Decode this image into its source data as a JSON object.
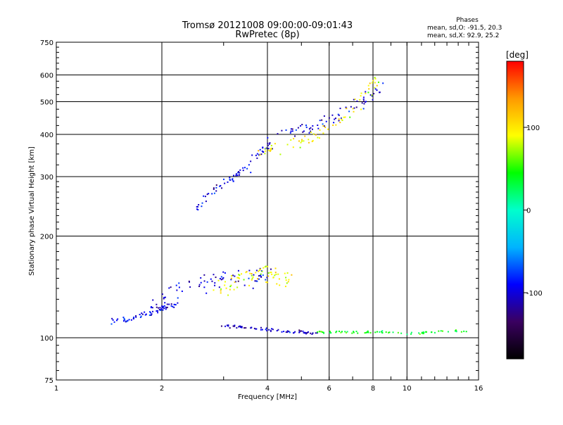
{
  "chart_data": {
    "type": "scatter",
    "title": "Tromsø 20121008 09:00:00-09:01:43",
    "subtitle": "RwPretec (8p)",
    "xlabel": "Frequency [MHz]",
    "ylabel": "Stationary phase Virtual Height [km]",
    "x_scale": "log",
    "y_scale": "log",
    "xlim": [
      1,
      16
    ],
    "ylim": [
      75,
      750
    ],
    "x_ticks": [
      1,
      2,
      4,
      6,
      8,
      10,
      16
    ],
    "x_tick_labels": [
      "1",
      "2",
      "4",
      "6",
      "8",
      "10",
      "16"
    ],
    "y_ticks": [
      75,
      100,
      200,
      300,
      400,
      500,
      600,
      750
    ],
    "y_tick_labels": [
      "75",
      "100",
      "200",
      "300",
      "400",
      "500",
      "600",
      "750"
    ],
    "grid": true,
    "stats": {
      "heading": "Phases",
      "line_o": "mean, sd,O: -91.5, 20.3",
      "line_x": "mean, sd,X:  92.9, 25.2"
    },
    "colorbar": {
      "unit_label": "[deg]",
      "range": [
        -180,
        180
      ],
      "tick_values": [
        100,
        0,
        -100
      ],
      "tick_labels": [
        "100",
        "0",
        "-100"
      ],
      "colors": [
        "#000000",
        "#3a0060",
        "#0000ff",
        "#00b4ff",
        "#00ffcc",
        "#00ff00",
        "#ffff00",
        "#ff9900",
        "#ff0000"
      ]
    },
    "traces": [
      {
        "name": "",
        "phase": -95,
        "f": [
          1.4,
          1.6,
          1.8,
          2.0,
          2.2
        ],
        "h": [
          112,
          113,
          117,
          122,
          125
        ],
        "spread": [
          0.03,
          0.03
        ]
      },
      {
        "name": "",
        "phase": -100,
        "f": [
          1.9,
          2.2,
          2.6,
          3.0,
          3.6,
          4.0
        ],
        "h": [
          128,
          138,
          145,
          150,
          152,
          152
        ],
        "spread": [
          0.06,
          0.09
        ]
      },
      {
        "name": "",
        "phase": 90,
        "f": [
          2.9,
          3.4,
          4.0,
          4.6
        ],
        "h": [
          140,
          150,
          155,
          152
        ],
        "spread": [
          0.05,
          0.1
        ]
      },
      {
        "name": "",
        "phase": -100,
        "f": [
          2.5,
          2.7,
          3.0,
          3.3,
          3.7,
          4.1
        ],
        "h": [
          240,
          265,
          285,
          305,
          340,
          380
        ],
        "spread": [
          0.04,
          0.05
        ]
      },
      {
        "name": "",
        "phase": -100,
        "f": [
          3.9,
          4.6,
          5.3,
          6.0,
          6.8,
          7.6,
          8.4
        ],
        "h": [
          400,
          410,
          420,
          440,
          470,
          510,
          550
        ],
        "spread": [
          0.05,
          0.06
        ]
      },
      {
        "name": "",
        "phase": 95,
        "f": [
          3.8,
          4.5,
          5.2,
          6.0,
          6.8,
          7.5,
          8.3
        ],
        "h": [
          360,
          365,
          385,
          420,
          460,
          520,
          580
        ],
        "spread": [
          0.05,
          0.06
        ]
      },
      {
        "name": "",
        "phase": -105,
        "f": [
          2.8,
          3.2,
          3.6,
          4.2,
          5.0,
          5.5
        ],
        "h": [
          108,
          108,
          107,
          105,
          104,
          103
        ],
        "spread": [
          0.04,
          0.015
        ]
      },
      {
        "name": "",
        "phase": 40,
        "f": [
          5.5,
          6.5,
          7.5,
          8.5,
          10.0,
          12.0,
          15.0
        ],
        "h": [
          104,
          104,
          104,
          104,
          103,
          104,
          105
        ],
        "spread": [
          0.03,
          0.012
        ]
      }
    ]
  }
}
